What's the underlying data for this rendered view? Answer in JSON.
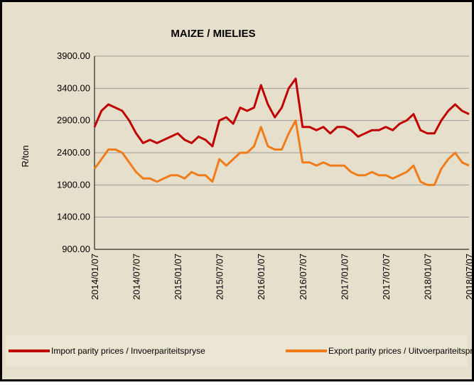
{
  "chart_data": {
    "type": "line",
    "title": "MAIZE / MIELIES",
    "ylabel": "R/ton",
    "categories": [
      "2014/01/07",
      null,
      null,
      null,
      null,
      null,
      "2014/07/07",
      null,
      null,
      null,
      null,
      null,
      "2015/01/07",
      null,
      null,
      null,
      null,
      null,
      "2015/07/07",
      null,
      null,
      null,
      null,
      null,
      "2016/01/07",
      null,
      null,
      null,
      null,
      null,
      "2016/07/07",
      null,
      null,
      null,
      null,
      null,
      "2017/01/07",
      null,
      null,
      null,
      null,
      null,
      "2017/07/07",
      null,
      null,
      null,
      null,
      null,
      "2018/01/07",
      null,
      null,
      null,
      null,
      null,
      "2018/07/07"
    ],
    "series": [
      {
        "name": "Import parity prices / Invoerpariteitspryse",
        "color": "#c00000",
        "values": [
          2800,
          3050,
          3150,
          3100,
          3050,
          2900,
          2700,
          2550,
          2600,
          2550,
          2600,
          2650,
          2700,
          2600,
          2550,
          2650,
          2600,
          2500,
          2900,
          2950,
          2850,
          3100,
          3050,
          3100,
          3450,
          3150,
          2950,
          3100,
          3400,
          3550,
          2800,
          2800,
          2750,
          2800,
          2700,
          2800,
          2800,
          2750,
          2650,
          2700,
          2750,
          2750,
          2800,
          2750,
          2850,
          2900,
          3000,
          2750,
          2700,
          2700,
          2900,
          3050,
          3150,
          3050,
          3000
        ]
      },
      {
        "name": "Export parity prices / Uitvoerpariteitspryse",
        "color": "#f07c1a",
        "values": [
          2150,
          2300,
          2450,
          2450,
          2400,
          2250,
          2100,
          2000,
          2000,
          1950,
          2000,
          2050,
          2050,
          2000,
          2100,
          2050,
          2050,
          1950,
          2300,
          2200,
          2300,
          2400,
          2400,
          2500,
          2800,
          2500,
          2450,
          2450,
          2700,
          2900,
          2250,
          2250,
          2200,
          2250,
          2200,
          2200,
          2200,
          2100,
          2050,
          2050,
          2100,
          2050,
          2050,
          2000,
          2050,
          2100,
          2200,
          1950,
          1900,
          1900,
          2150,
          2300,
          2400,
          2250,
          2200
        ]
      }
    ],
    "ylim": [
      900,
      3900
    ],
    "yticks": [
      {
        "value": 900,
        "label": "900.00"
      },
      {
        "value": 1400,
        "label": "1400.00"
      },
      {
        "value": 1900,
        "label": "1900.00"
      },
      {
        "value": 2400,
        "label": "2400.00"
      },
      {
        "value": 2900,
        "label": "2900.00"
      },
      {
        "value": 3400,
        "label": "3400.00"
      },
      {
        "value": 3900,
        "label": "3900.00"
      }
    ],
    "grid": true,
    "legend": "bottom"
  }
}
